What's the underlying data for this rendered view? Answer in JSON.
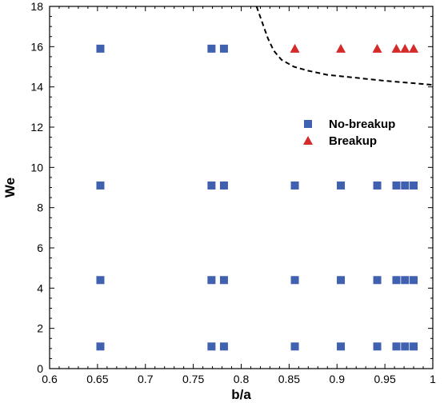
{
  "chart_data": {
    "type": "scatter",
    "title": "",
    "xlabel": "b/a",
    "ylabel": "We",
    "xlim": [
      0.6,
      1.0
    ],
    "ylim": [
      0,
      18
    ],
    "xticks": [
      "0.6",
      "0.65",
      "0.7",
      "0.75",
      "0.8",
      "0.85",
      "0.9",
      "0.95",
      "1"
    ],
    "yticks": [
      "0",
      "2",
      "4",
      "6",
      "8",
      "10",
      "12",
      "14",
      "16",
      "18"
    ],
    "grid": false,
    "legend_position": "right",
    "series": [
      {
        "name": "No-breakup",
        "marker": "square",
        "color": "#4060b0",
        "points": [
          [
            0.653,
            15.9
          ],
          [
            0.769,
            15.9
          ],
          [
            0.782,
            15.9
          ],
          [
            0.653,
            9.1
          ],
          [
            0.769,
            9.1
          ],
          [
            0.782,
            9.1
          ],
          [
            0.856,
            9.1
          ],
          [
            0.904,
            9.1
          ],
          [
            0.942,
            9.1
          ],
          [
            0.962,
            9.1
          ],
          [
            0.971,
            9.1
          ],
          [
            0.98,
            9.1
          ],
          [
            0.653,
            4.4
          ],
          [
            0.769,
            4.4
          ],
          [
            0.782,
            4.4
          ],
          [
            0.856,
            4.4
          ],
          [
            0.904,
            4.4
          ],
          [
            0.942,
            4.4
          ],
          [
            0.962,
            4.4
          ],
          [
            0.971,
            4.4
          ],
          [
            0.98,
            4.4
          ],
          [
            0.653,
            1.1
          ],
          [
            0.769,
            1.1
          ],
          [
            0.782,
            1.1
          ],
          [
            0.856,
            1.1
          ],
          [
            0.904,
            1.1
          ],
          [
            0.942,
            1.1
          ],
          [
            0.962,
            1.1
          ],
          [
            0.971,
            1.1
          ],
          [
            0.98,
            1.1
          ]
        ]
      },
      {
        "name": "Breakup",
        "marker": "triangle",
        "color": "#d42a2a",
        "points": [
          [
            0.856,
            15.9
          ],
          [
            0.904,
            15.9
          ],
          [
            0.942,
            15.9
          ],
          [
            0.962,
            15.9
          ],
          [
            0.971,
            15.9
          ],
          [
            0.98,
            15.9
          ]
        ]
      }
    ],
    "boundary_curve": {
      "style": "dashed",
      "color": "#000000",
      "points": [
        [
          0.816,
          18.0
        ],
        [
          0.822,
          17.2
        ],
        [
          0.828,
          16.4
        ],
        [
          0.834,
          15.8
        ],
        [
          0.842,
          15.35
        ],
        [
          0.855,
          15.0
        ],
        [
          0.87,
          14.8
        ],
        [
          0.89,
          14.6
        ],
        [
          0.92,
          14.45
        ],
        [
          0.95,
          14.3
        ],
        [
          0.975,
          14.2
        ],
        [
          1.0,
          14.1
        ]
      ]
    }
  }
}
